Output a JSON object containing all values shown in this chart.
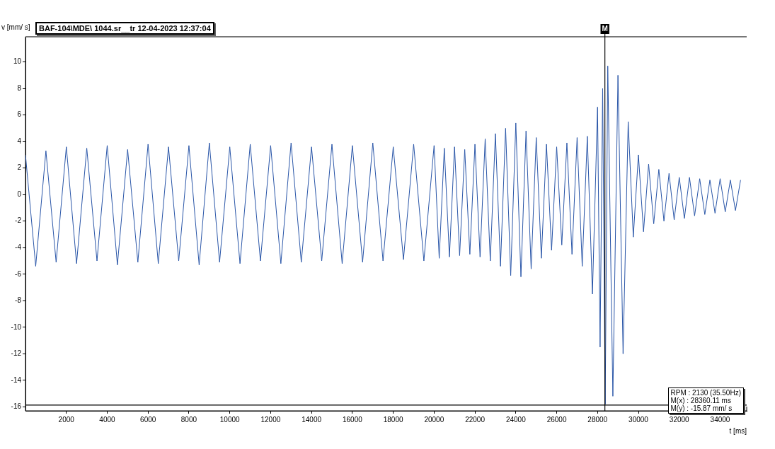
{
  "chart_data": {
    "type": "line",
    "title": "BAF-104\\MDE\\ 1044.sr__tr 12-04-2023 12:37:04",
    "xlabel": "t [ms]",
    "ylabel": "v [mm/ s]",
    "x": [
      0,
      500,
      1000,
      1500,
      2000,
      2500,
      3000,
      3500,
      4000,
      4500,
      5000,
      5500,
      6000,
      6500,
      7000,
      7500,
      8000,
      8500,
      9000,
      9500,
      10000,
      10500,
      11000,
      11500,
      12000,
      12500,
      13000,
      13500,
      14000,
      14500,
      15000,
      15500,
      16000,
      16500,
      17000,
      17500,
      18000,
      18500,
      19000,
      19500,
      20000,
      20250,
      20500,
      20750,
      21000,
      21250,
      21500,
      21750,
      22000,
      22250,
      22500,
      22750,
      23000,
      23250,
      23500,
      23750,
      24000,
      24250,
      24500,
      24750,
      25000,
      25250,
      25500,
      25750,
      26000,
      26250,
      26500,
      26750,
      27000,
      27250,
      27500,
      27750,
      28000,
      28125,
      28250,
      28375,
      28500,
      28750,
      29000,
      29250,
      29500,
      29750,
      30000,
      30250,
      30500,
      30750,
      31000,
      31250,
      31500,
      31750,
      32000,
      32250,
      32500,
      32750,
      33000,
      33250,
      33500,
      33750,
      34000,
      34250,
      34500,
      34750,
      35000
    ],
    "series": [
      {
        "color": "#2a56a8",
        "values": [
          3.0,
          -5.4,
          3.3,
          -5.1,
          3.6,
          -5.2,
          3.5,
          -5.0,
          3.7,
          -5.3,
          3.4,
          -5.1,
          3.8,
          -5.2,
          3.6,
          -5.0,
          3.7,
          -5.3,
          3.9,
          -5.1,
          3.6,
          -5.2,
          3.8,
          -5.0,
          3.7,
          -5.2,
          3.9,
          -5.1,
          3.6,
          -5.0,
          3.8,
          -5.2,
          3.7,
          -5.1,
          3.9,
          -5.0,
          3.6,
          -4.9,
          3.8,
          -5.0,
          3.7,
          -4.8,
          3.5,
          -4.7,
          3.6,
          -4.6,
          3.4,
          -4.5,
          3.8,
          -4.7,
          4.2,
          -5.0,
          4.6,
          -5.4,
          5.0,
          -6.1,
          5.4,
          -6.2,
          4.8,
          -5.6,
          4.3,
          -4.8,
          3.8,
          -4.2,
          3.6,
          -3.8,
          3.9,
          -4.5,
          4.3,
          -5.4,
          4.4,
          -7.5,
          6.6,
          -11.5,
          8.0,
          -15.8,
          9.7,
          -15.2,
          9.0,
          -12.0,
          5.5,
          -3.2,
          3.0,
          -2.8,
          2.3,
          -2.2,
          1.9,
          -2.0,
          1.6,
          -1.9,
          1.3,
          -1.8,
          1.3,
          -1.6,
          1.2,
          -1.5,
          1.1,
          -1.4,
          1.2,
          -1.3,
          1.1,
          -1.2,
          1.1
        ]
      }
    ],
    "xlim": [
      0,
      35300
    ],
    "ylim": [
      -16.3,
      11.9
    ],
    "xticks": [
      2000,
      4000,
      6000,
      8000,
      10000,
      12000,
      14000,
      16000,
      18000,
      20000,
      22000,
      24000,
      26000,
      28000,
      30000,
      32000,
      34000
    ],
    "yticks": [
      -16,
      -14,
      -12,
      -10,
      -8,
      -6,
      -4,
      -2,
      0,
      2,
      4,
      6,
      8,
      10
    ],
    "ref_lines": [
      {
        "axis": "x",
        "value": 28360.11,
        "label": "M",
        "color": "#000000"
      },
      {
        "axis": "y",
        "value": -15.87,
        "label": null,
        "color": "#000000"
      }
    ],
    "annotations": [
      "RPM : 2130 (35.50Hz)",
      "M(x) : 28360.11 ms",
      "M(y) : -15.87 mm/ s"
    ],
    "grid": false,
    "legend": false,
    "marker": "none",
    "line_style": "solid"
  }
}
